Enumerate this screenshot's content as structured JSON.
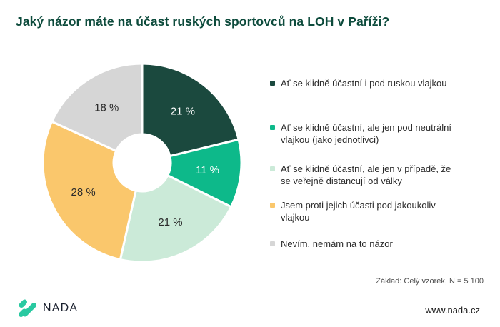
{
  "page": {
    "background_color": "#ffffff"
  },
  "header": {
    "title": "Jaký názor máte na účast ruských sportovců na LOH v Paříži?",
    "title_color": "#0D4B3C"
  },
  "chart_data": {
    "type": "pie",
    "subtype": "donut",
    "title": "Jaký názor máte na účast ruských sportovců na LOH v Paříži?",
    "unit": "%",
    "direction": "clockwise",
    "start_angle_deg_from_top": 0,
    "legend_position": "right",
    "labels": [
      "Ať se klidně účastní i pod ruskou vlajkou",
      "Ať se klidně účastní, ale jen pod neutrální vlajkou (jako jednotlivci)",
      "Ať se klidně účastní, ale jen v případě, že se veřejně distancují od války",
      "Jsem proti jejich účasti pod jakoukoliv vlajkou",
      "Nevím, nemám na to názor"
    ],
    "values": [
      21,
      11,
      21,
      28,
      18
    ],
    "slice_labels": [
      "21 %",
      "11 %",
      "21 %",
      "28 %",
      "18 %"
    ],
    "colors": [
      "#1B493E",
      "#0DB98A",
      "#CBEAD8",
      "#FAC76C",
      "#D6D6D6"
    ],
    "slice_label_colors": [
      "#FFFFFF",
      "#FFFFFF",
      "#2B2B2B",
      "#2B2B2B",
      "#2B2B2B"
    ]
  },
  "legend": {
    "items": [
      {
        "label": "Ať se klidně účastní i pod ruskou vlajkou"
      },
      {
        "label": "Ať se klidně účastní, ale jen pod neutrální\nvlajkou (jako jednotlivci)"
      },
      {
        "label": "Ať se klidně účastní, ale jen v případě, že\nse veřejně distancují od války"
      },
      {
        "label": "Jsem proti jejich účasti pod jakoukoliv\nvlajkou"
      },
      {
        "label": "Nevím, nemám na to názor"
      }
    ]
  },
  "footer": {
    "base_note": "Základ: Celý vzorek, N = 5 100",
    "brand_name": "NADA",
    "brand_color": "#29C9A1",
    "website": "www.nada.cz"
  }
}
